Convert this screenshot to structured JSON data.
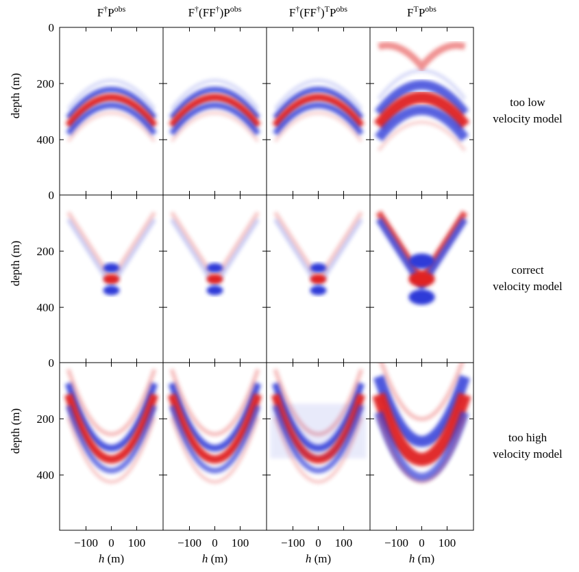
{
  "columns": [
    [
      {
        "text": "F"
      },
      {
        "text": "†",
        "sup": true
      },
      {
        "text": "P"
      },
      {
        "text": "obs",
        "sup": true
      }
    ],
    [
      {
        "text": "F"
      },
      {
        "text": "†",
        "sup": true
      },
      {
        "text": "(FF"
      },
      {
        "text": "†",
        "sup": true
      },
      {
        "text": ")P"
      },
      {
        "text": "obs",
        "sup": true
      }
    ],
    [
      {
        "text": "F"
      },
      {
        "text": "†",
        "sup": true
      },
      {
        "text": "(FF"
      },
      {
        "text": "†",
        "sup": true
      },
      {
        "text": ")"
      },
      {
        "text": "T",
        "sup": true
      },
      {
        "text": "P"
      },
      {
        "text": "obs",
        "sup": true
      }
    ],
    [
      {
        "text": "F"
      },
      {
        "text": "T",
        "sup": true
      },
      {
        "text": "P"
      },
      {
        "text": "obs",
        "sup": true
      }
    ]
  ],
  "rows": [
    {
      "label": [
        "too low",
        "velocity model"
      ]
    },
    {
      "label": [
        "correct",
        "velocity model"
      ]
    },
    {
      "label": [
        "too high",
        "velocity model"
      ]
    }
  ],
  "y_axis": {
    "label": "depth (m)",
    "ylim": [
      0,
      597
    ],
    "yticks": [
      0,
      200,
      400
    ]
  },
  "x_axis": {
    "label": [
      {
        "text": "h",
        "italic": true
      },
      {
        "text": " (m)"
      }
    ],
    "xlim": [
      -204,
      204
    ],
    "xticks": [
      {
        "value": -100,
        "label": "−100"
      },
      0,
      100
    ]
  }
}
